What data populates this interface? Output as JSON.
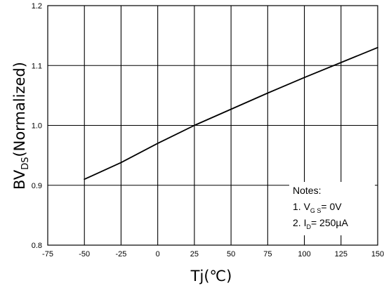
{
  "chart_data": {
    "type": "line",
    "title": "",
    "xlabel": "Tj(℃)",
    "ylabel": {
      "main": "BV",
      "subscript": "DS",
      "suffix": "(Normalized)"
    },
    "xlim": [
      -75,
      150
    ],
    "ylim": [
      0.8,
      1.2
    ],
    "xticks": [
      "-75",
      "-50",
      "-25",
      "0",
      "25",
      "50",
      "75",
      "100",
      "125",
      "150"
    ],
    "yticks": [
      "0.8",
      "0.9",
      "1.0",
      "1.1",
      "1.2"
    ],
    "grid": true,
    "series": [
      {
        "x": [
          -50,
          -25,
          0,
          25,
          50,
          75,
          100,
          125,
          150
        ],
        "y": [
          0.91,
          0.938,
          0.97,
          1.0,
          1.027,
          1.054,
          1.08,
          1.105,
          1.13
        ]
      }
    ],
    "notes": {
      "heading": "Notes:",
      "line1": {
        "prefix": "1. V",
        "sub": "G S",
        "suffix": "= 0V"
      },
      "line2": {
        "prefix": "2. I",
        "sub": "D",
        "suffix": "= 250µA"
      }
    },
    "colors": {
      "line": "#000000",
      "grid": "#000000",
      "background": "#ffffff"
    }
  }
}
